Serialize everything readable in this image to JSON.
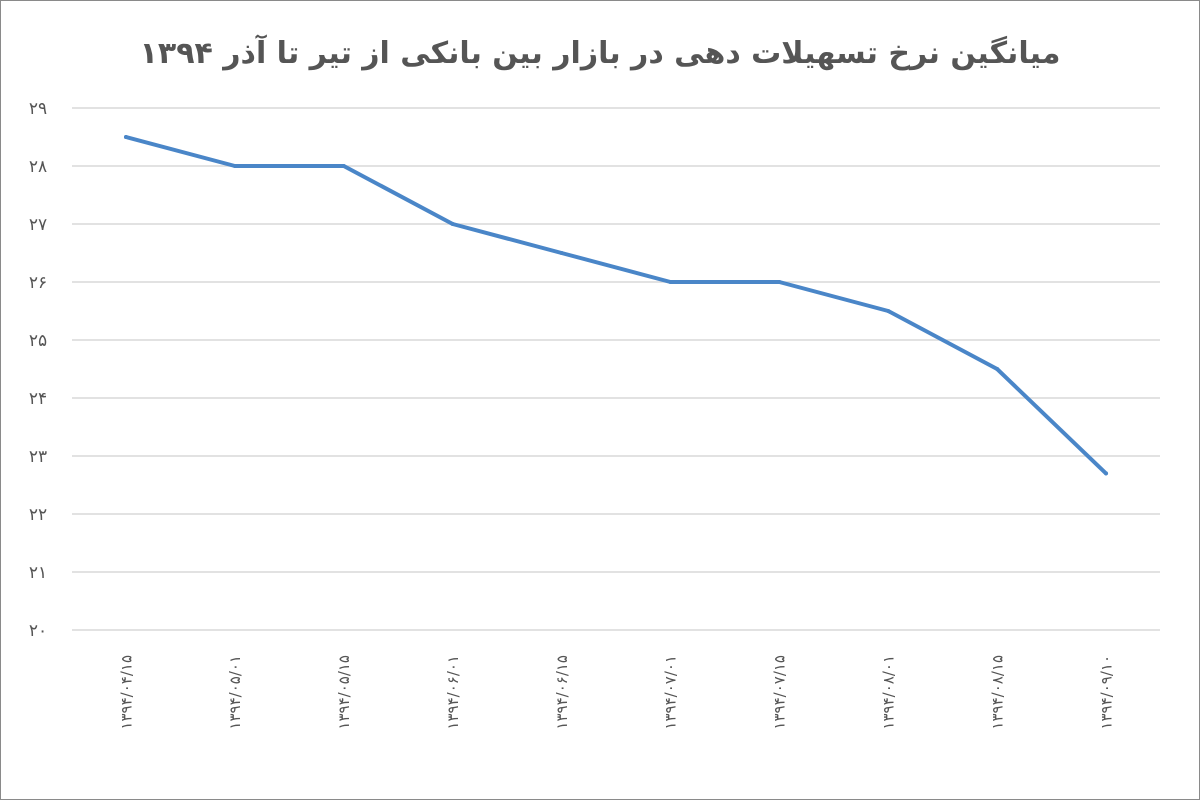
{
  "chart_data": {
    "type": "line",
    "title": "میانگین نرخ تسهیلات دهی در بازار بین بانکی از تیر تا آذر ۱۳۹۴",
    "xlabel": "",
    "ylabel": "",
    "categories": [
      "۱۳۹۴/۰۴/۱۵",
      "۱۳۹۴/۰۵/۰۱",
      "۱۳۹۴/۰۵/۱۵",
      "۱۳۹۴/۰۶/۰۱",
      "۱۳۹۴/۰۶/۱۵",
      "۱۳۹۴/۰۷/۰۱",
      "۱۳۹۴/۰۷/۱۵",
      "۱۳۹۴/۰۸/۰۱",
      "۱۳۹۴/۰۸/۱۵",
      "۱۳۹۴/۰۹/۱۰"
    ],
    "values": [
      28.5,
      28.0,
      28.0,
      27.0,
      26.5,
      26.0,
      26.0,
      25.5,
      24.5,
      22.7
    ],
    "ylim": [
      20,
      29
    ],
    "yticks": [
      20,
      21,
      22,
      23,
      24,
      25,
      26,
      27,
      28,
      29
    ],
    "ytick_labels": [
      "۲۰",
      "۲۱",
      "۲۲",
      "۲۳",
      "۲۴",
      "۲۵",
      "۲۶",
      "۲۷",
      "۲۸",
      "۲۹"
    ],
    "grid": true,
    "legend": "none",
    "line_color": "#4a86c8",
    "grid_color": "#d9d9d9",
    "text_color": "#555555"
  }
}
